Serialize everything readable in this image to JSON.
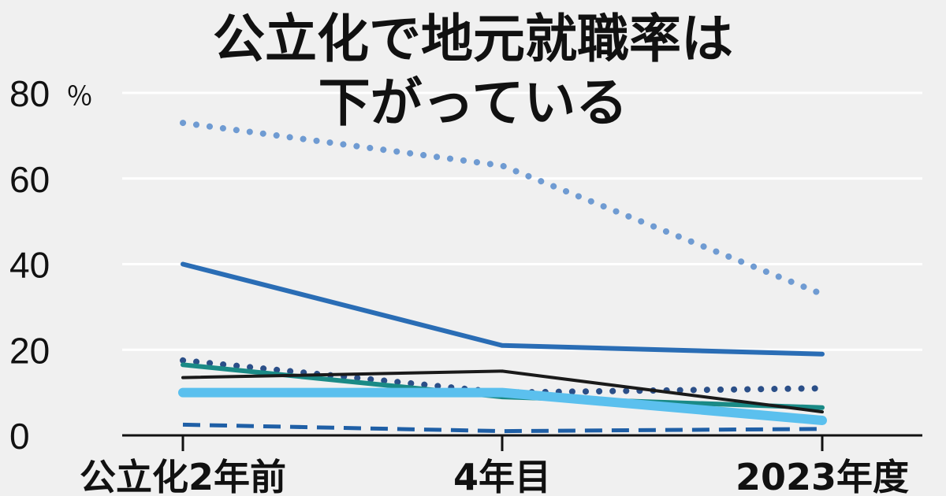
{
  "chart_data": {
    "type": "line",
    "title_line1": "公立化で地元就職率は",
    "title_line2": "下がっている",
    "y_unit": "％",
    "categories": [
      "公立化2年前",
      "4年目",
      "2023年度"
    ],
    "yticks": [
      "0",
      "20",
      "40",
      "60",
      "80"
    ],
    "ylim": [
      0,
      80
    ],
    "grid": true,
    "series": [
      {
        "values": [
          73,
          63,
          33
        ],
        "color": "#6f9bd2",
        "style": "dotted"
      },
      {
        "values": [
          40,
          21,
          19
        ],
        "color": "#2a6db5",
        "style": "solid"
      },
      {
        "values": [
          17.5,
          10,
          11
        ],
        "color": "#2b4f88",
        "style": "dotted"
      },
      {
        "values": [
          16.5,
          9,
          6.5
        ],
        "color": "#1a8a86",
        "style": "solid"
      },
      {
        "values": [
          13.5,
          15,
          5.5
        ],
        "color": "#1a1a1a",
        "style": "solid"
      },
      {
        "values": [
          10,
          10,
          3.5
        ],
        "color": "#5bc0ee",
        "style": "solid"
      },
      {
        "values": [
          2.5,
          1,
          1.5
        ],
        "color": "#1f5fa6",
        "style": "dashed"
      }
    ]
  }
}
